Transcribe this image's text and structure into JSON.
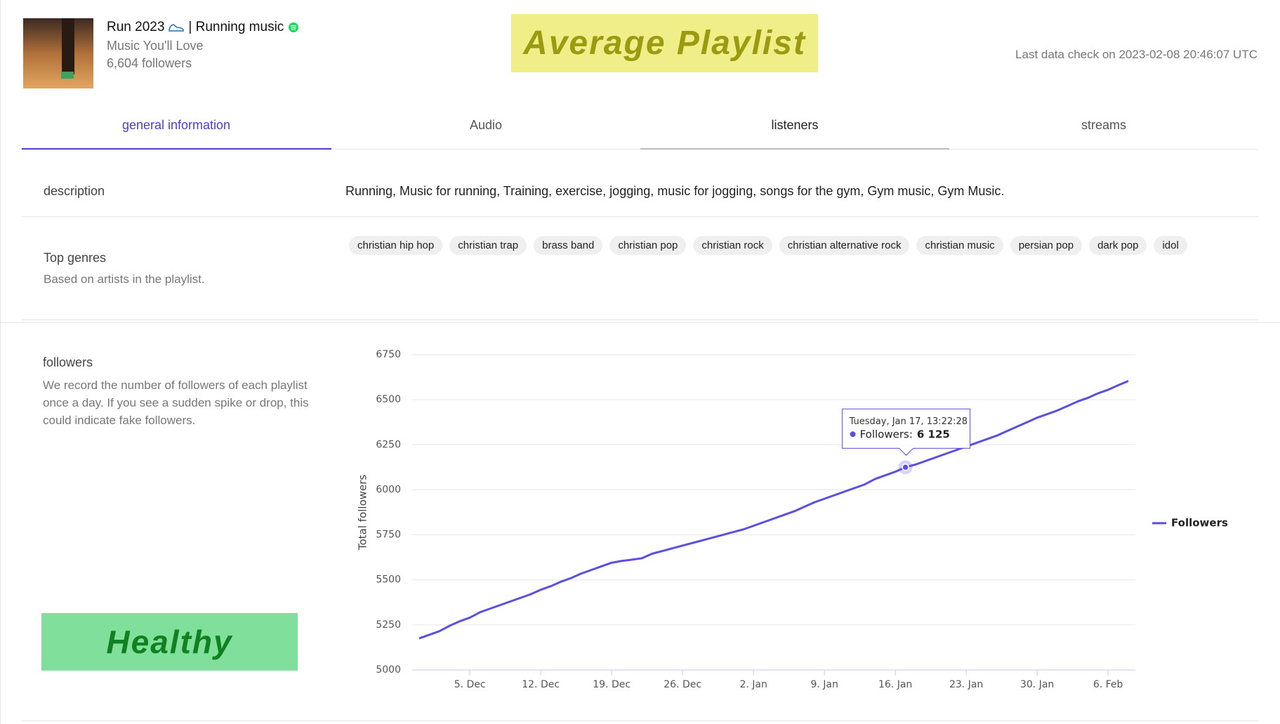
{
  "header": {
    "title": "Run 2023",
    "title_suffix": "| Running music",
    "subtitle": "Music You'll Love",
    "followers": "6,604 followers",
    "badge": "Average Playlist",
    "last_check": "Last data check on 2023-02-08 20:46:07 UTC"
  },
  "tabs": [
    "general information",
    "Audio",
    "listeners",
    "streams"
  ],
  "description": {
    "label": "description",
    "text": "Running, Music for running, Training, exercise, jogging, music for jogging, songs for the gym, Gym music, Gym Music."
  },
  "genres": {
    "label": "Top genres",
    "sublabel": "Based on artists in the playlist.",
    "items": [
      "christian hip hop",
      "christian trap",
      "brass band",
      "christian pop",
      "christian rock",
      "christian alternative rock",
      "christian music",
      "persian pop",
      "dark pop",
      "idol"
    ]
  },
  "followers_section": {
    "label": "followers",
    "text": "We record the number of followers of each playlist once a day. If you see a sudden spike or drop, this could indicate fake followers."
  },
  "health": "Healthy",
  "chart_data": {
    "type": "line",
    "y_label": "Total followers",
    "x": [
      null,
      null,
      null,
      null,
      null,
      "5. Dec",
      null,
      null,
      null,
      null,
      null,
      null,
      "12. Dec",
      null,
      null,
      null,
      null,
      null,
      null,
      "19. Dec",
      null,
      null,
      null,
      null,
      null,
      null,
      "26. Dec",
      null,
      null,
      null,
      null,
      null,
      null,
      "2. Jan",
      null,
      null,
      null,
      null,
      null,
      null,
      "9. Jan",
      null,
      null,
      null,
      null,
      null,
      null,
      "16. Jan",
      null,
      null,
      null,
      null,
      null,
      null,
      "23. Jan",
      null,
      null,
      null,
      null,
      null,
      null,
      "30. Jan",
      null,
      null,
      null,
      null,
      null,
      null,
      "6. Feb",
      null,
      null
    ],
    "series": [
      {
        "name": "Followers",
        "color": "#5b4fe0",
        "values": [
          5175,
          5195,
          5215,
          5245,
          5270,
          5290,
          5320,
          5340,
          5360,
          5380,
          5400,
          5420,
          5445,
          5465,
          5490,
          5510,
          5535,
          5555,
          5575,
          5595,
          5605,
          5612,
          5620,
          5645,
          5660,
          5675,
          5690,
          5705,
          5720,
          5735,
          5750,
          5765,
          5780,
          5800,
          5820,
          5840,
          5860,
          5880,
          5905,
          5930,
          5950,
          5970,
          5990,
          6010,
          6030,
          6060,
          6080,
          6100,
          6125,
          6140,
          6160,
          6180,
          6200,
          6220,
          6240,
          6260,
          6280,
          6300,
          6325,
          6350,
          6375,
          6400,
          6420,
          6440,
          6465,
          6490,
          6510,
          6535,
          6555,
          6580,
          6604
        ]
      }
    ],
    "ylim": [
      5000,
      6750
    ],
    "yticks": [
      5000,
      5250,
      5500,
      5750,
      6000,
      6250,
      6500,
      6750
    ],
    "grid": true,
    "legend": "right",
    "tooltip": {
      "title": "Tuesday, Jan 17, 13:22:28",
      "label": "Followers:",
      "value": 6125,
      "value_label": "6 125"
    }
  }
}
